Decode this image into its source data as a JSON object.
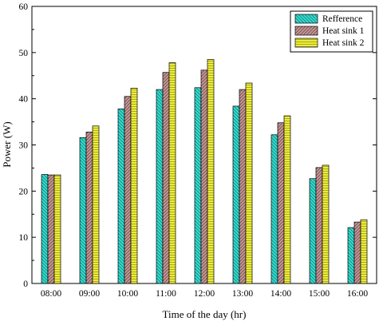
{
  "chart_data": {
    "type": "bar",
    "xlabel": "Time of the day (hr)",
    "ylabel": "Power (W)",
    "ylim": [
      0,
      60
    ],
    "yticks": [
      0,
      10,
      20,
      30,
      40,
      50,
      60
    ],
    "categories": [
      "08:00",
      "09:00",
      "10:00",
      "11:00",
      "12:00",
      "13:00",
      "14:00",
      "15:00",
      "16:00"
    ],
    "series": [
      {
        "name": "Refference",
        "color": "#33e0d2",
        "hatch": "diagonal-left",
        "values": [
          23.6,
          31.6,
          37.8,
          42.0,
          42.4,
          38.4,
          32.2,
          22.7,
          12.1
        ]
      },
      {
        "name": "Heat sink 1",
        "color": "#c99999",
        "hatch": "diagonal-right",
        "values": [
          23.5,
          32.8,
          40.5,
          45.7,
          46.2,
          42.0,
          34.8,
          25.1,
          13.3
        ]
      },
      {
        "name": "Heat sink 2",
        "color": "#ecec3a",
        "hatch": "horizontal",
        "values": [
          23.5,
          34.1,
          42.3,
          47.8,
          48.5,
          43.4,
          36.3,
          25.6,
          13.8
        ]
      }
    ],
    "legend_position": "top-right",
    "grid": false
  }
}
